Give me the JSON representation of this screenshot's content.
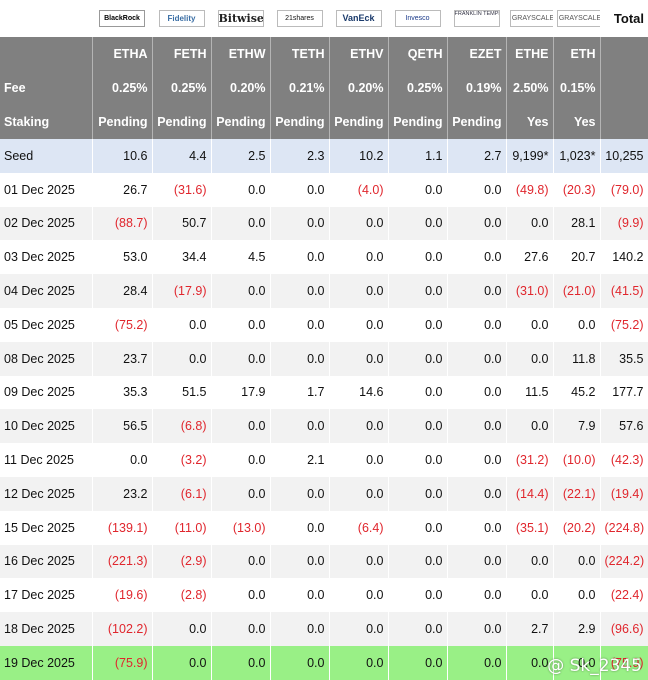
{
  "issuers": [
    {
      "logo": "BlackRock",
      "icon": "blackrock-logo"
    },
    {
      "logo": "Fidelity",
      "icon": "fidelity-logo"
    },
    {
      "logo": "Bitwise",
      "icon": "bitwise-logo"
    },
    {
      "logo": "21shares",
      "icon": "21shares-logo"
    },
    {
      "logo": "VanEck",
      "icon": "vaneck-logo"
    },
    {
      "logo": "Invesco",
      "icon": "invesco-logo"
    },
    {
      "logo": "FRANKLIN TEMPLETON",
      "icon": "franklin-templeton-logo"
    },
    {
      "logo": "GRAYSCALE",
      "icon": "grayscale-logo"
    },
    {
      "logo": "GRAYSCALE",
      "icon": "grayscale-logo"
    }
  ],
  "total_header": "Total",
  "tickers": [
    "ETHA",
    "FETH",
    "ETHW",
    "TETH",
    "ETHV",
    "QETH",
    "EZET",
    "ETHE",
    "ETH"
  ],
  "fee": {
    "label": "Fee",
    "values": [
      "0.25%",
      "0.25%",
      "0.20%",
      "0.21%",
      "0.20%",
      "0.25%",
      "0.19%",
      "2.50%",
      "0.15%"
    ]
  },
  "staking": {
    "label": "Staking",
    "values": [
      "Pending",
      "Pending",
      "Pending",
      "Pending",
      "Pending",
      "Pending",
      "Pending",
      "Yes",
      "Yes"
    ]
  },
  "rows": [
    {
      "label": "Seed",
      "style": "seed",
      "values": [
        "10.6",
        "4.4",
        "2.5",
        "2.3",
        "10.2",
        "1.1",
        "2.7",
        "9,199*",
        "1,023*",
        "10,255"
      ]
    },
    {
      "label": "01 Dec 2025",
      "style": "white",
      "values": [
        "26.7",
        "(31.6)",
        "0.0",
        "0.0",
        "(4.0)",
        "0.0",
        "0.0",
        "(49.8)",
        "(20.3)",
        "(79.0)"
      ]
    },
    {
      "label": "02 Dec 2025",
      "style": "alt",
      "values": [
        "(88.7)",
        "50.7",
        "0.0",
        "0.0",
        "0.0",
        "0.0",
        "0.0",
        "0.0",
        "28.1",
        "(9.9)"
      ]
    },
    {
      "label": "03 Dec 2025",
      "style": "white",
      "values": [
        "53.0",
        "34.4",
        "4.5",
        "0.0",
        "0.0",
        "0.0",
        "0.0",
        "27.6",
        "20.7",
        "140.2"
      ]
    },
    {
      "label": "04 Dec 2025",
      "style": "alt",
      "values": [
        "28.4",
        "(17.9)",
        "0.0",
        "0.0",
        "0.0",
        "0.0",
        "0.0",
        "(31.0)",
        "(21.0)",
        "(41.5)"
      ]
    },
    {
      "label": "05 Dec 2025",
      "style": "white",
      "values": [
        "(75.2)",
        "0.0",
        "0.0",
        "0.0",
        "0.0",
        "0.0",
        "0.0",
        "0.0",
        "0.0",
        "(75.2)"
      ]
    },
    {
      "label": "08 Dec 2025",
      "style": "alt",
      "values": [
        "23.7",
        "0.0",
        "0.0",
        "0.0",
        "0.0",
        "0.0",
        "0.0",
        "0.0",
        "11.8",
        "35.5"
      ]
    },
    {
      "label": "09 Dec 2025",
      "style": "white",
      "values": [
        "35.3",
        "51.5",
        "17.9",
        "1.7",
        "14.6",
        "0.0",
        "0.0",
        "11.5",
        "45.2",
        "177.7"
      ]
    },
    {
      "label": "10 Dec 2025",
      "style": "alt",
      "values": [
        "56.5",
        "(6.8)",
        "0.0",
        "0.0",
        "0.0",
        "0.0",
        "0.0",
        "0.0",
        "7.9",
        "57.6"
      ]
    },
    {
      "label": "11 Dec 2025",
      "style": "white",
      "values": [
        "0.0",
        "(3.2)",
        "0.0",
        "2.1",
        "0.0",
        "0.0",
        "0.0",
        "(31.2)",
        "(10.0)",
        "(42.3)"
      ]
    },
    {
      "label": "12 Dec 2025",
      "style": "alt",
      "values": [
        "23.2",
        "(6.1)",
        "0.0",
        "0.0",
        "0.0",
        "0.0",
        "0.0",
        "(14.4)",
        "(22.1)",
        "(19.4)"
      ]
    },
    {
      "label": "15 Dec 2025",
      "style": "white",
      "values": [
        "(139.1)",
        "(11.0)",
        "(13.0)",
        "0.0",
        "(6.4)",
        "0.0",
        "0.0",
        "(35.1)",
        "(20.2)",
        "(224.8)"
      ]
    },
    {
      "label": "16 Dec 2025",
      "style": "alt",
      "values": [
        "(221.3)",
        "(2.9)",
        "0.0",
        "0.0",
        "0.0",
        "0.0",
        "0.0",
        "0.0",
        "0.0",
        "(224.2)"
      ]
    },
    {
      "label": "17 Dec 2025",
      "style": "white",
      "values": [
        "(19.6)",
        "(2.8)",
        "0.0",
        "0.0",
        "0.0",
        "0.0",
        "0.0",
        "0.0",
        "0.0",
        "(22.4)"
      ]
    },
    {
      "label": "18 Dec 2025",
      "style": "alt",
      "values": [
        "(102.2)",
        "0.0",
        "0.0",
        "0.0",
        "0.0",
        "0.0",
        "0.0",
        "2.7",
        "2.9",
        "(96.6)"
      ]
    },
    {
      "label": "19 Dec 2025",
      "style": "last",
      "values": [
        "(75.9)",
        "0.0",
        "0.0",
        "0.0",
        "0.0",
        "0.0",
        "0.0",
        "0.0",
        "0.0",
        "(75.9)"
      ]
    }
  ],
  "watermark": "@ Sk_2345",
  "colors": {
    "header_bg": "#808080",
    "negative": "#e0262d",
    "seed_bg": "#dde6f4",
    "alt_bg": "#f2f2f2",
    "highlight_bg": "#99f086"
  }
}
